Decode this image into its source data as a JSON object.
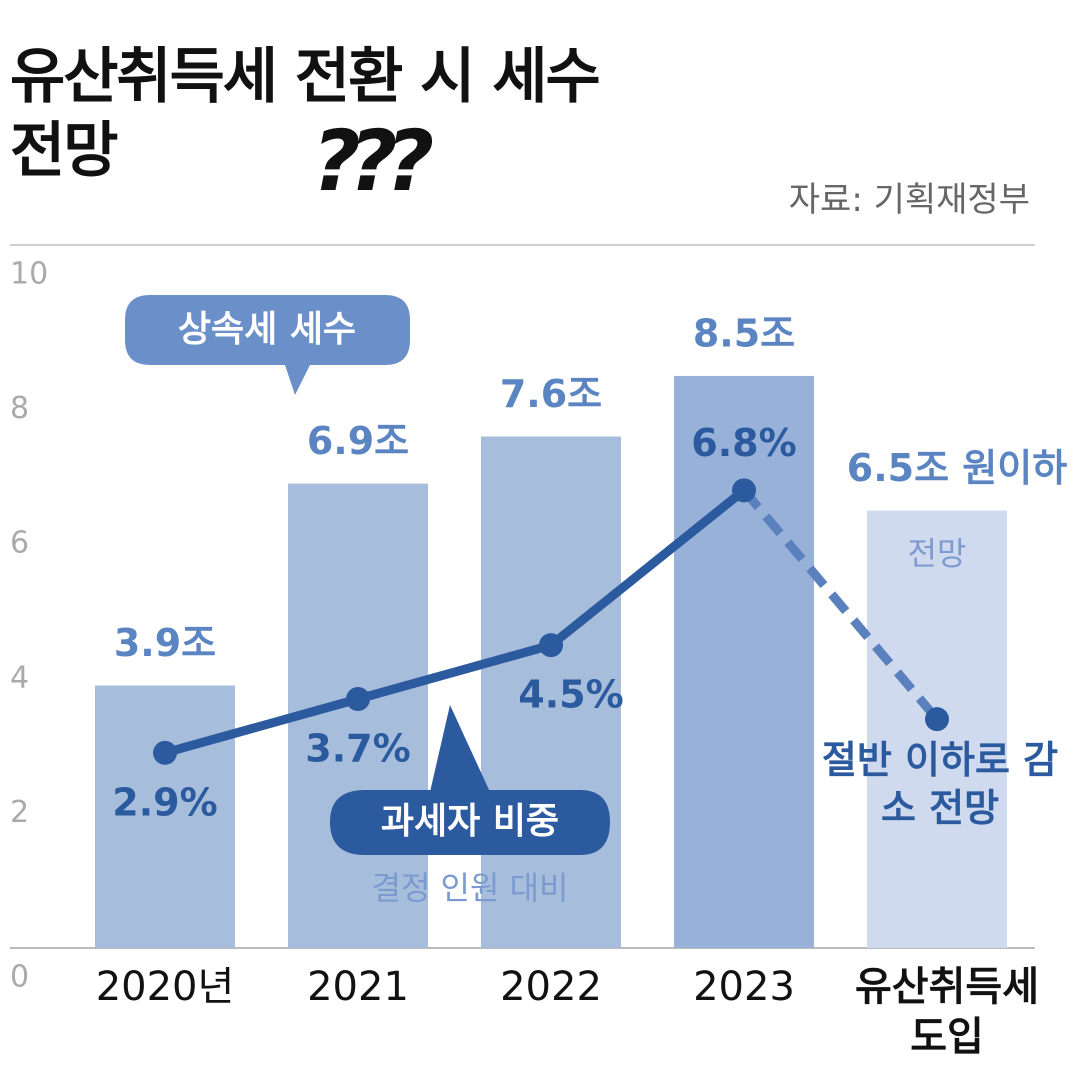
{
  "chart_data": {
    "type": "bar",
    "title": "유산취득세 전환 시 세수 전망",
    "decoration": "???",
    "source": "자료: 기획재정부",
    "categories": [
      "2020년",
      "2021",
      "2022",
      "2023",
      "유산취득세 도입"
    ],
    "series": [
      {
        "name": "상속세 세수",
        "type": "bar",
        "values": [
          3.9,
          6.9,
          7.6,
          8.5,
          6.5
        ],
        "value_labels": [
          "3.9조",
          "6.9조",
          "7.6조",
          "8.5조",
          "6.5조 원이하"
        ],
        "colors": [
          "#a7bddc",
          "#a7bddc",
          "#a7bddc",
          "#98b1d8",
          "#cfdaee"
        ],
        "label_color": "#5b84c2"
      },
      {
        "name": "과세자 비중",
        "type": "line",
        "values": [
          2.9,
          3.7,
          4.5,
          6.8,
          3.4
        ],
        "value_labels": [
          "2.9%",
          "3.7%",
          "4.5%",
          "6.8%",
          null
        ],
        "color": "#2c5a9e",
        "dashed_last_segment": true
      }
    ],
    "annotations": {
      "basis": "결정 인원 대비",
      "outlook": "전망",
      "decline": "절반 이하로 감소 전망"
    },
    "ylim": [
      0,
      10
    ],
    "yticks": [
      0,
      2,
      4,
      6,
      8,
      10
    ],
    "grid": false
  }
}
